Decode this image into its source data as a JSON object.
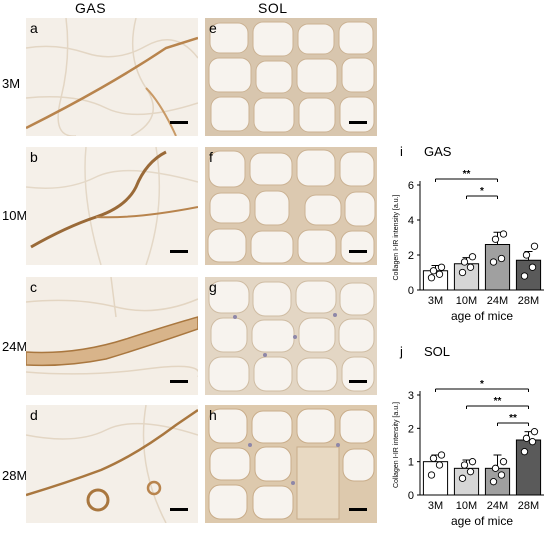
{
  "headers": {
    "gas": "GAS",
    "sol": "SOL"
  },
  "rows": [
    "3M",
    "10M",
    "24M",
    "28M"
  ],
  "panel_letters": {
    "gas": [
      "a",
      "b",
      "c",
      "d"
    ],
    "sol": [
      "e",
      "f",
      "g",
      "h"
    ]
  },
  "colors": {
    "stain": "#b8844d",
    "tissue": "#f3eee6",
    "nuclei": "#8e87a8",
    "bar_3M": "#ffffff",
    "bar_10M": "#d6d6d6",
    "bar_24M": "#a0a0a0",
    "bar_28M": "#5a5a5a"
  },
  "chart_data": [
    {
      "type": "bar",
      "panel_label": "i",
      "title": "GAS",
      "categories": [
        "3M",
        "10M",
        "24M",
        "28M"
      ],
      "values": [
        1.1,
        1.5,
        2.6,
        1.7
      ],
      "errors": [
        0.3,
        0.35,
        0.7,
        0.5
      ],
      "points": [
        [
          0.7,
          0.9,
          1.1,
          1.3
        ],
        [
          1.0,
          1.3,
          1.6,
          1.9
        ],
        [
          1.6,
          1.8,
          2.9,
          3.2
        ],
        [
          0.8,
          1.3,
          2.0,
          2.5
        ]
      ],
      "xlabel": "age of mice",
      "ylabel": "Collagen I-IR intensity [a.u.]",
      "ylim": [
        0,
        6
      ],
      "yticks": [
        0,
        2,
        4,
        6
      ],
      "significance": [
        {
          "from": 0,
          "to": 2,
          "label": "**"
        },
        {
          "from": 1,
          "to": 2,
          "label": "*"
        }
      ]
    },
    {
      "type": "bar",
      "panel_label": "j",
      "title": "SOL",
      "categories": [
        "3M",
        "10M",
        "24M",
        "28M"
      ],
      "values": [
        1.0,
        0.8,
        0.8,
        1.65
      ],
      "errors": [
        0.2,
        0.25,
        0.4,
        0.25
      ],
      "points": [
        [
          0.6,
          0.9,
          1.1,
          1.2
        ],
        [
          0.5,
          0.7,
          0.9,
          1.0
        ],
        [
          0.4,
          0.6,
          0.8,
          1.0
        ],
        [
          1.3,
          1.6,
          1.7,
          1.9
        ]
      ],
      "xlabel": "age of mice",
      "ylabel": "Collagen I-IR intensity [a.u.]",
      "ylim": [
        0,
        3
      ],
      "yticks": [
        0,
        1,
        2,
        3
      ],
      "significance": [
        {
          "from": 0,
          "to": 3,
          "label": "*"
        },
        {
          "from": 1,
          "to": 3,
          "label": "**"
        },
        {
          "from": 2,
          "to": 3,
          "label": "**"
        }
      ]
    }
  ]
}
